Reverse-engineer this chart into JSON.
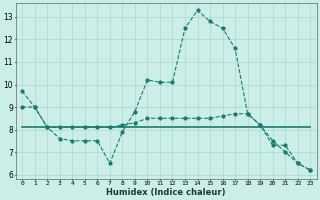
{
  "xlabel": "Humidex (Indice chaleur)",
  "bg_color": "#cceee8",
  "line_color": "#1a7a6e",
  "grid_color": "#aad8d0",
  "ylim": [
    5.8,
    13.6
  ],
  "xlim": [
    -0.5,
    23.5
  ],
  "yticks": [
    6,
    7,
    8,
    9,
    10,
    11,
    12,
    13
  ],
  "xticks": [
    0,
    1,
    2,
    3,
    4,
    5,
    6,
    7,
    8,
    9,
    10,
    11,
    12,
    13,
    14,
    15,
    16,
    17,
    18,
    19,
    20,
    21,
    22,
    23
  ],
  "line1_x": [
    0,
    1,
    2,
    3,
    4,
    5,
    6,
    7,
    8,
    9,
    10,
    11,
    12,
    13,
    14,
    15,
    16,
    17,
    18,
    19,
    20,
    21,
    22,
    23
  ],
  "line1_y": [
    9.7,
    9.0,
    8.1,
    7.6,
    7.5,
    7.5,
    7.5,
    6.5,
    7.9,
    8.8,
    10.2,
    10.1,
    10.1,
    12.5,
    13.3,
    12.8,
    12.5,
    11.6,
    8.7,
    8.2,
    7.3,
    7.3,
    6.5,
    6.2
  ],
  "line2_x": [
    0,
    1,
    2,
    3,
    4,
    5,
    6,
    7,
    8,
    9,
    10,
    11,
    12,
    13,
    14,
    15,
    16,
    17,
    18,
    19,
    20,
    21,
    22,
    23
  ],
  "line2_y": [
    9.0,
    9.0,
    8.1,
    8.1,
    8.1,
    8.1,
    8.1,
    8.1,
    8.2,
    8.3,
    8.5,
    8.5,
    8.5,
    8.5,
    8.5,
    8.5,
    8.6,
    8.7,
    8.7,
    8.2,
    7.5,
    7.0,
    6.5,
    6.2
  ],
  "line3_x": [
    0,
    23
  ],
  "line3_y": [
    8.1,
    8.1
  ]
}
